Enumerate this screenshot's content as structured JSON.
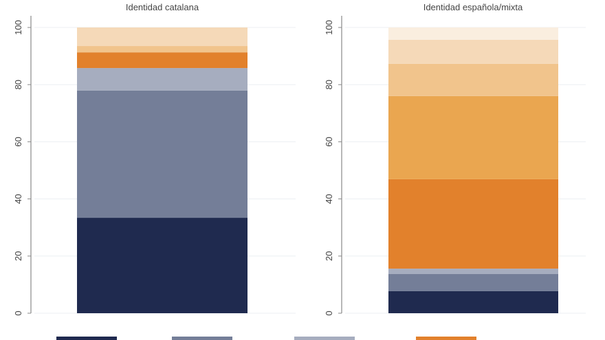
{
  "chart_data": {
    "type": "bar",
    "stacked": true,
    "ylim": [
      0,
      100
    ],
    "yticks": [
      0,
      20,
      40,
      60,
      80,
      100
    ],
    "grid": true,
    "legend_position": "bottom",
    "series_colors": [
      "#1f2a4f",
      "#747e98",
      "#a6adbf",
      "#e2812c",
      "#eaa650",
      "#f1c48c",
      "#f5d9b8",
      "#faeedf"
    ],
    "panels": [
      {
        "title": "Identidad catalana",
        "values": [
          33.4,
          44.5,
          7.9,
          5.5,
          0,
          2.2,
          6.5,
          0
        ]
      },
      {
        "title": "Identidad española/mixta",
        "values": [
          7.7,
          6.0,
          1.9,
          31.3,
          29.1,
          11.3,
          8.4,
          4.3
        ]
      }
    ]
  }
}
